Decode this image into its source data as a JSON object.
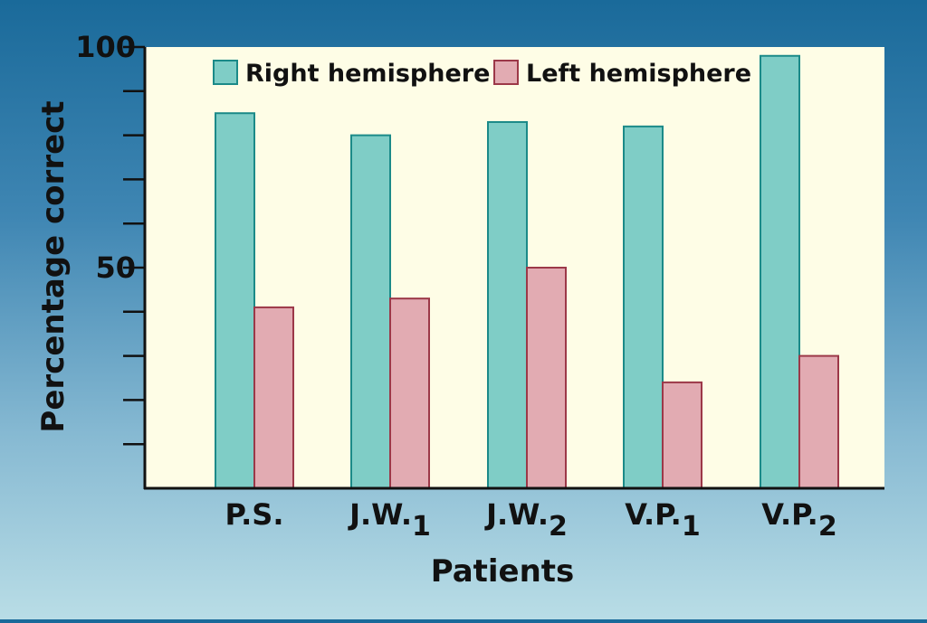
{
  "chart_data": {
    "type": "bar",
    "xlabel": "Patients",
    "ylabel": "Percentage correct",
    "ylim": [
      0,
      100
    ],
    "yticks_major": [
      50,
      100
    ],
    "ytick_step": 10,
    "categories": [
      {
        "base": "P.S.",
        "sub": ""
      },
      {
        "base": "J.W.",
        "sub": "1"
      },
      {
        "base": "J.W.",
        "sub": "2"
      },
      {
        "base": "V.P.",
        "sub": "1"
      },
      {
        "base": "V.P.",
        "sub": "2"
      }
    ],
    "series": [
      {
        "name": "Right hemisphere",
        "color": "#7fcdc6",
        "stroke": "#1b8a88",
        "values": [
          85,
          80,
          83,
          82,
          98
        ]
      },
      {
        "name": "Left hemisphere",
        "color": "#e2abb2",
        "stroke": "#9c3848",
        "values": [
          41,
          43,
          50,
          24,
          30
        ]
      }
    ],
    "legend": "top",
    "plot_background": "#fefde6",
    "grid": false
  }
}
